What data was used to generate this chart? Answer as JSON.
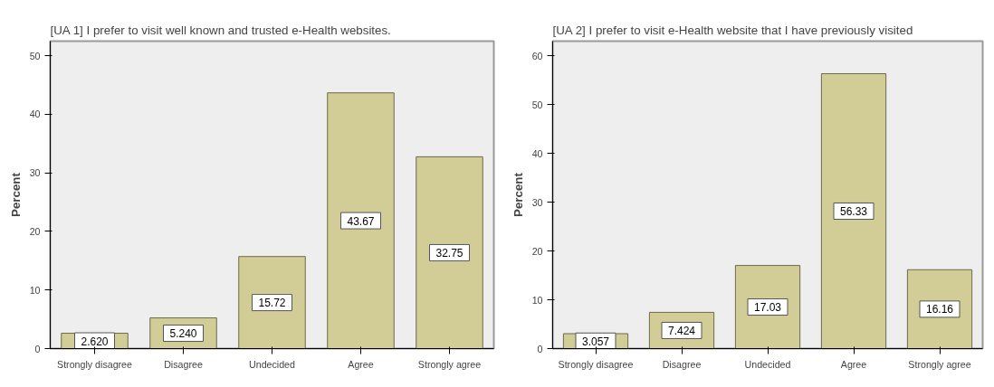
{
  "chart_data": [
    {
      "type": "bar",
      "title": "[UA 1] I prefer to visit well known and trusted e-Health websites.",
      "ylabel": "Percent",
      "categories": [
        "Strongly disagree",
        "Disagree",
        "Undecided",
        "Agree",
        "Strongly agree"
      ],
      "values": [
        2.62,
        5.24,
        15.72,
        43.67,
        32.75
      ],
      "value_labels": [
        "2.620",
        "5.240",
        "15.72",
        "43.67",
        "32.75"
      ],
      "color": "#d2cd96",
      "ylim": [
        0,
        52.5
      ],
      "yticks": [
        0,
        10,
        20,
        30,
        40,
        50
      ],
      "grid": false,
      "legend": false
    },
    {
      "type": "bar",
      "title": "[UA 2] I prefer to visit e-Health website that I have previously visited",
      "ylabel": "Percent",
      "categories": [
        "Strongly disagree",
        "Disagree",
        "Undecided",
        "Agree",
        "Strongly agree"
      ],
      "values": [
        3.057,
        7.424,
        17.03,
        56.33,
        16.16
      ],
      "value_labels": [
        "3.057",
        "7.424",
        "17.03",
        "56.33",
        "16.16"
      ],
      "color": "#d2cd96",
      "ylim": [
        0,
        63
      ],
      "yticks": [
        0,
        10,
        20,
        30,
        40,
        50,
        60
      ],
      "grid": false,
      "legend": false
    }
  ]
}
